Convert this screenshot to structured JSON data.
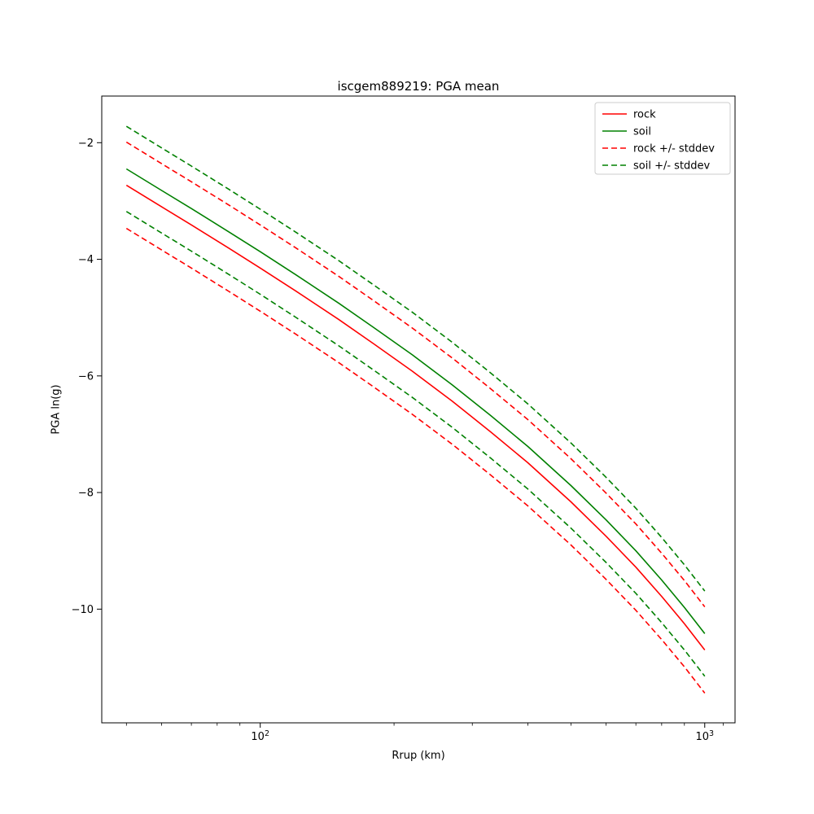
{
  "chart_data": {
    "type": "line",
    "title": "iscgem889219: PGA mean",
    "xlabel": "Rrup (km)",
    "ylabel": "PGA ln(g)",
    "x_scale": "log",
    "grid": false,
    "xlim": [
      44,
      1170
    ],
    "ylim": [
      -11.95,
      -1.2
    ],
    "yticks": [
      -2,
      -4,
      -6,
      -8,
      -10
    ],
    "xticks": [
      100,
      1000
    ],
    "xtick_labels": [
      {
        "base": "10",
        "exp": "2"
      },
      {
        "base": "10",
        "exp": "3"
      }
    ],
    "x_minor_ticks": [
      50,
      60,
      70,
      80,
      90,
      200,
      300,
      400,
      500,
      600,
      700,
      800,
      900,
      1100
    ],
    "legend_position": "upper right",
    "x": [
      50,
      60,
      70,
      85,
      100,
      120,
      150,
      180,
      220,
      270,
      330,
      400,
      500,
      600,
      700,
      800,
      900,
      1000
    ],
    "series": [
      {
        "label": "rock",
        "color": "#ff0000",
        "dash": false,
        "in_legend": true,
        "values": [
          -2.73,
          -3.1,
          -3.41,
          -3.81,
          -4.15,
          -4.54,
          -5.03,
          -5.45,
          -5.92,
          -6.43,
          -6.96,
          -7.49,
          -8.16,
          -8.75,
          -9.28,
          -9.78,
          -10.25,
          -10.7
        ]
      },
      {
        "label": "soil",
        "color": "#008000",
        "dash": false,
        "in_legend": true,
        "values": [
          -2.45,
          -2.82,
          -3.13,
          -3.53,
          -3.87,
          -4.26,
          -4.75,
          -5.17,
          -5.64,
          -6.15,
          -6.68,
          -7.21,
          -7.88,
          -8.47,
          -9.0,
          -9.5,
          -9.97,
          -10.42
        ]
      },
      {
        "label": "rock +/- stddev",
        "color": "#ff0000",
        "dash": true,
        "in_legend": true,
        "values": [
          -1.99,
          -2.36,
          -2.67,
          -3.07,
          -3.41,
          -3.8,
          -4.29,
          -4.71,
          -5.18,
          -5.69,
          -6.22,
          -6.75,
          -7.42,
          -8.01,
          -8.54,
          -9.04,
          -9.51,
          -9.96
        ]
      },
      {
        "label": "rock minus stddev",
        "color": "#ff0000",
        "dash": true,
        "in_legend": false,
        "values": [
          -3.47,
          -3.84,
          -4.15,
          -4.55,
          -4.89,
          -5.28,
          -5.77,
          -6.19,
          -6.66,
          -7.17,
          -7.7,
          -8.23,
          -8.9,
          -9.49,
          -10.02,
          -10.52,
          -10.99,
          -11.44
        ]
      },
      {
        "label": "soil +/- stddev",
        "color": "#008000",
        "dash": true,
        "in_legend": true,
        "values": [
          -1.72,
          -2.09,
          -2.4,
          -2.8,
          -3.14,
          -3.53,
          -4.02,
          -4.44,
          -4.91,
          -5.42,
          -5.95,
          -6.48,
          -7.15,
          -7.74,
          -8.27,
          -8.77,
          -9.24,
          -9.69
        ]
      },
      {
        "label": "soil minus stddev",
        "color": "#008000",
        "dash": true,
        "in_legend": false,
        "values": [
          -3.18,
          -3.55,
          -3.86,
          -4.26,
          -4.6,
          -4.99,
          -5.48,
          -5.9,
          -6.37,
          -6.88,
          -7.41,
          -7.94,
          -8.61,
          -9.2,
          -9.73,
          -10.23,
          -10.7,
          -11.15
        ]
      }
    ]
  }
}
